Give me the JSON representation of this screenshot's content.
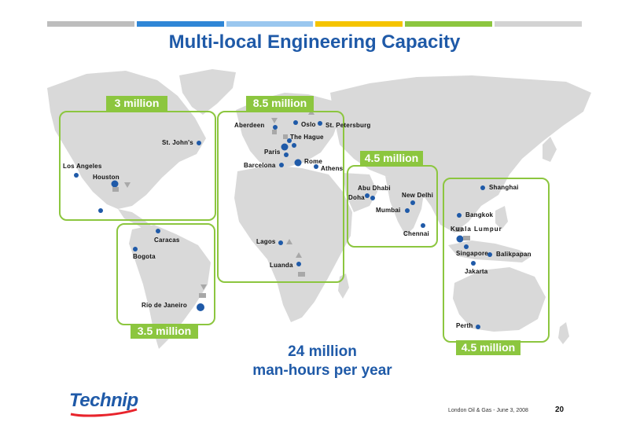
{
  "colors": {
    "top_bar": [
      "#bdbdbd",
      "#2f86d6",
      "#9ac7ef",
      "#f5c400",
      "#8cc63f",
      "#d3d3d3"
    ],
    "title": "#1f5aa8",
    "region": "#8cc63f",
    "dot": "#1f5aa8",
    "land": "#d9d9d9"
  },
  "title": "Multi-local Engineering Capacity",
  "regions": [
    {
      "label": "3 million"
    },
    {
      "label": "8.5 million"
    },
    {
      "label": "4.5 million"
    },
    {
      "label": "3.5 million"
    },
    {
      "label": "4.5 million"
    }
  ],
  "cities": [
    "St. John's",
    "Los Angeles",
    "Houston",
    "Caracas",
    "Bogota",
    "Rio de Janeiro",
    "Aberdeen",
    "Oslo",
    "St. Petersburg",
    "The Hague",
    "Paris",
    "Barcelona",
    "Rome",
    "Athens",
    "Lagos",
    "Luanda",
    "Abu Dhabi",
    "Doha",
    "New Delhi",
    "Mumbai",
    "Chennai",
    "Shanghai",
    "Bangkok",
    "Kuala Lumpur",
    "Singapore",
    "Balikpapan",
    "Jakarta",
    "Perth"
  ],
  "summary": {
    "line1": "24 million",
    "line2": "man-hours per year"
  },
  "logo": "Technip",
  "footer": "London Oil & Gas  - June 3, 2008",
  "page_number": "20"
}
